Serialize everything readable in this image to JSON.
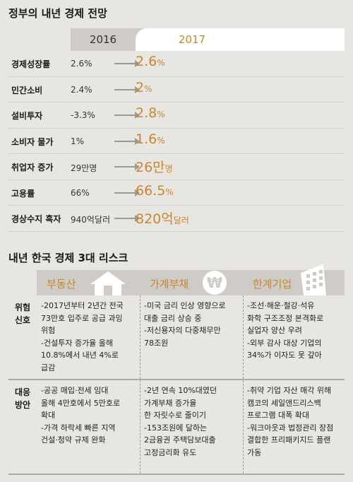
{
  "section1": {
    "title": "정부의 내년 경제 전망",
    "col2016": "2016",
    "col2017": "2017",
    "rows": [
      {
        "label": "경제성장률",
        "v2016": "2.6%",
        "v2017": "2.6",
        "unit": "%"
      },
      {
        "label": "민간소비",
        "v2016": "2.4%",
        "v2017": "2",
        "unit": "%"
      },
      {
        "label": "설비투자",
        "v2016": "-3.3%",
        "v2017": "2.8",
        "unit": "%"
      },
      {
        "label": "소비자 물가",
        "v2016": "1%",
        "v2017": "1.6",
        "unit": "%"
      },
      {
        "label": "취업자 증가",
        "v2016": "29만명",
        "v2017": "26만",
        "unit": "명"
      },
      {
        "label": "고용률",
        "v2016": "66%",
        "v2017": "66.5",
        "unit": "%"
      },
      {
        "label": "경상수지 흑자",
        "v2016": "940억달러",
        "v2017": "820억",
        "unit": "달러"
      }
    ]
  },
  "section2": {
    "title": "내년 한국 경제 3대 리스크",
    "columns": [
      "부동산",
      "가계부채",
      "한계기업"
    ],
    "won_symbol": "₩",
    "rows": [
      {
        "category": [
          "위험",
          "신호"
        ],
        "cells": [
          [
            "-2017년부터 2년간 전국",
            "73만호 입주로 공급 과잉",
            "위험",
            "-건설투자 증가율 올해",
            "10.8%에서 내년 4%로",
            "급감"
          ],
          [
            "-미국 금리 인상 영향으로",
            "대출 금리 상승 중",
            "-저신용자의 다중채무만",
            "78조원"
          ],
          [
            "-조선·해운·철강·석유",
            "화학 구조조정 본격화로",
            "실업자 양산 우려",
            "-외부 감사 대상 기업의",
            "34%가 이자도 못 갚아"
          ]
        ]
      },
      {
        "category": [
          "대응",
          "방안"
        ],
        "cells": [
          [
            "-공공 매입·전세 임대",
            "올해 4만호에서 5만호로",
            "확대",
            "-가격 하락세 빠른 지역",
            "건설·청약 규제 완화"
          ],
          [
            "-2년 연속 10%대였던",
            "가계부채 증가율",
            "한 자릿수로 줄이기",
            "-153조원에 달하는",
            "2금융권 주택담보대출",
            "고정금리화 유도"
          ],
          [
            "-취약 기업 자산 매각 위해",
            "캠코의 세일앤드리스백",
            "프로그램 대폭 확대",
            "-워크아웃과 법정관리 장점",
            "결합한 프리패키지드 플랜",
            "가동"
          ]
        ]
      }
    ]
  },
  "colors": {
    "accent": "#c9862e",
    "header_bg": "#cfccc7",
    "page_bg": "#e8e6e3"
  }
}
